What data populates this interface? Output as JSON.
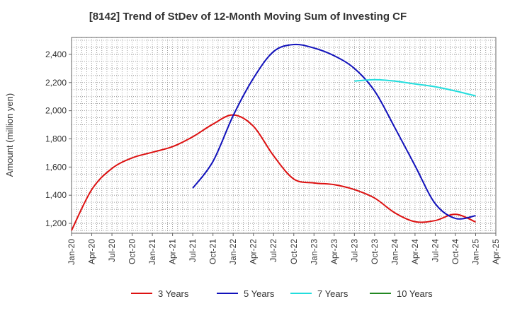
{
  "title": "[8142]  Trend of StDev of 12-Month Moving Sum of Investing CF",
  "chart_data": {
    "type": "line",
    "title": "[8142]  Trend of StDev of 12-Month Moving Sum of Investing CF",
    "xlabel": "",
    "ylabel": "Amount (million yen)",
    "x_ticks": [
      "Jan-20",
      "Apr-20",
      "Jul-20",
      "Oct-20",
      "Jan-21",
      "Apr-21",
      "Jul-21",
      "Oct-21",
      "Jan-22",
      "Apr-22",
      "Jul-22",
      "Oct-22",
      "Jan-23",
      "Apr-23",
      "Jul-23",
      "Oct-23",
      "Jan-24",
      "Apr-24",
      "Jul-24",
      "Oct-24",
      "Jan-25",
      "Apr-25"
    ],
    "xlim": [
      "Jan-20",
      "Apr-25"
    ],
    "y_ticks": [
      1200,
      1400,
      1600,
      1800,
      2000,
      2200,
      2400
    ],
    "y_tick_labels": [
      "1,200",
      "1,400",
      "1,600",
      "1,800",
      "2,000",
      "2,200",
      "2,400"
    ],
    "ylim": [
      1130,
      2520
    ],
    "grid": true,
    "legend_position": "bottom",
    "series": [
      {
        "name": "3 Years",
        "color": "#dd1111",
        "points": [
          [
            "Jan-20",
            1150
          ],
          [
            "Apr-20",
            1440
          ],
          [
            "Jul-20",
            1590
          ],
          [
            "Oct-20",
            1665
          ],
          [
            "Jan-21",
            1705
          ],
          [
            "Apr-21",
            1745
          ],
          [
            "Jul-21",
            1815
          ],
          [
            "Oct-21",
            1905
          ],
          [
            "Jan-22",
            1970
          ],
          [
            "Apr-22",
            1890
          ],
          [
            "Jul-22",
            1680
          ],
          [
            "Oct-22",
            1515
          ],
          [
            "Jan-23",
            1487
          ],
          [
            "Apr-23",
            1475
          ],
          [
            "Jul-23",
            1440
          ],
          [
            "Oct-23",
            1380
          ],
          [
            "Jan-24",
            1275
          ],
          [
            "Apr-24",
            1212
          ],
          [
            "Jul-24",
            1220
          ],
          [
            "Oct-24",
            1265
          ],
          [
            "Jan-25",
            1210
          ]
        ]
      },
      {
        "name": "5 Years",
        "color": "#1111bb",
        "points": [
          [
            "Jul-21",
            1450
          ],
          [
            "Oct-21",
            1640
          ],
          [
            "Jan-22",
            1965
          ],
          [
            "Apr-22",
            2230
          ],
          [
            "Jul-22",
            2420
          ],
          [
            "Oct-22",
            2470
          ],
          [
            "Jan-23",
            2445
          ],
          [
            "Apr-23",
            2390
          ],
          [
            "Jul-23",
            2300
          ],
          [
            "Oct-23",
            2140
          ],
          [
            "Jan-24",
            1880
          ],
          [
            "Apr-24",
            1610
          ],
          [
            "Jul-24",
            1340
          ],
          [
            "Oct-24",
            1235
          ],
          [
            "Jan-25",
            1255
          ]
        ]
      },
      {
        "name": "7 Years",
        "color": "#22dddd",
        "points": [
          [
            "Jul-23",
            2210
          ],
          [
            "Oct-23",
            2220
          ],
          [
            "Jan-24",
            2210
          ],
          [
            "Apr-24",
            2190
          ],
          [
            "Jul-24",
            2170
          ],
          [
            "Oct-24",
            2140
          ],
          [
            "Jan-25",
            2105
          ]
        ]
      },
      {
        "name": "10 Years",
        "color": "#228822",
        "points": []
      }
    ]
  }
}
